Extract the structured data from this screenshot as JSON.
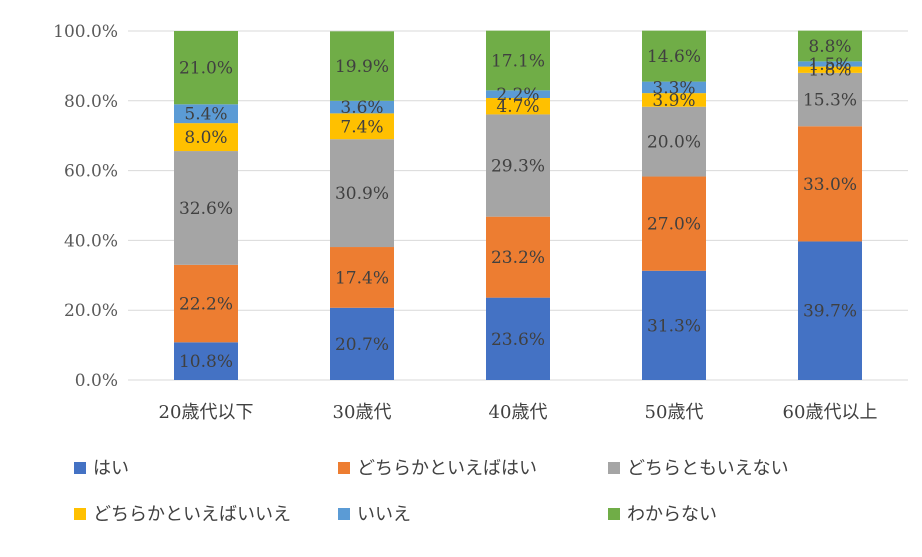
{
  "chart_data": {
    "type": "bar",
    "stacked": true,
    "percent": true,
    "categories": [
      "20歳代以下",
      "30歳代",
      "40歳代",
      "50歳代",
      "60歳代以上"
    ],
    "series": [
      {
        "name": "はい",
        "color": "#4472C4",
        "values": [
          10.8,
          20.7,
          23.6,
          31.3,
          39.7
        ],
        "labels": [
          "10.8%",
          "20.7%",
          "23.6%",
          "31.3%",
          "39.7%"
        ]
      },
      {
        "name": "どちらかといえばはい",
        "color": "#ED7D31",
        "values": [
          22.2,
          17.4,
          23.2,
          27.0,
          33.0
        ],
        "labels": [
          "22.2%",
          "17.4%",
          "23.2%",
          "27.0%",
          "33.0%"
        ]
      },
      {
        "name": "どちらともいえない",
        "color": "#A5A5A5",
        "values": [
          32.6,
          30.9,
          29.3,
          20.0,
          15.3
        ],
        "labels": [
          "32.6%",
          "30.9%",
          "29.3%",
          "20.0%",
          "15.3%"
        ]
      },
      {
        "name": "どちらかといえばいいえ",
        "color": "#FFC000",
        "values": [
          8.0,
          7.4,
          4.7,
          3.9,
          1.8
        ],
        "labels": [
          "8.0%",
          "7.4%",
          "4.7%",
          "3.9%",
          "1.8%"
        ]
      },
      {
        "name": "いいえ",
        "color": "#5B9BD5",
        "values": [
          5.4,
          3.6,
          2.2,
          3.3,
          1.5
        ],
        "labels": [
          "5.4%",
          "3.6%",
          "2.2%",
          "3.3%",
          "1.5%"
        ]
      },
      {
        "name": "わからない",
        "color": "#70AD47",
        "values": [
          21.0,
          19.9,
          17.1,
          14.6,
          8.8
        ],
        "labels": [
          "21.0%",
          "19.9%",
          "17.1%",
          "14.6%",
          "8.8%"
        ]
      }
    ],
    "y_ticks": [
      "0.0%",
      "20.0%",
      "40.0%",
      "60.0%",
      "80.0%",
      "100.0%"
    ],
    "ylim": [
      0,
      100
    ],
    "grid": true,
    "legend_position": "bottom",
    "title": "",
    "xlabel": "",
    "ylabel": ""
  }
}
